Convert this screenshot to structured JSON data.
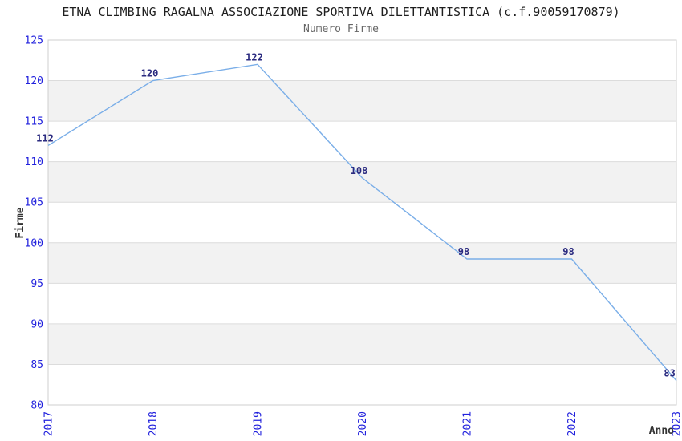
{
  "title": "ETNA CLIMBING RAGALNA ASSOCIAZIONE SPORTIVA DILETTANTISTICA (c.f.90059170879)",
  "subtitle": "Numero Firme",
  "chart_data": {
    "type": "line",
    "x": [
      "2017",
      "2018",
      "2019",
      "2020",
      "2021",
      "2022",
      "2023"
    ],
    "series": [
      {
        "name": "Firme",
        "values": [
          112,
          120,
          122,
          108,
          98,
          98,
          83
        ]
      }
    ],
    "data_labels": [
      "112",
      "120",
      "122",
      "108",
      "98",
      "98",
      "83"
    ],
    "title": "Numero Firme",
    "xlabel": "Anno",
    "ylabel": "Firme",
    "ylim": [
      80,
      125
    ],
    "yticks": [
      80,
      85,
      90,
      95,
      100,
      105,
      110,
      115,
      120,
      125
    ],
    "grid": true,
    "banded_background": true,
    "legend": "none",
    "markers": "none"
  },
  "colors": {
    "line": "#7aaee8",
    "tick_label": "#2222dd",
    "data_label": "#2b2b80",
    "band": "#f2f2f2",
    "gridline": "#dcdcdc",
    "plot_border": "#cfcfcf",
    "title": "#1f1f1f",
    "subtitle": "#666666",
    "axis_title": "#333333"
  }
}
